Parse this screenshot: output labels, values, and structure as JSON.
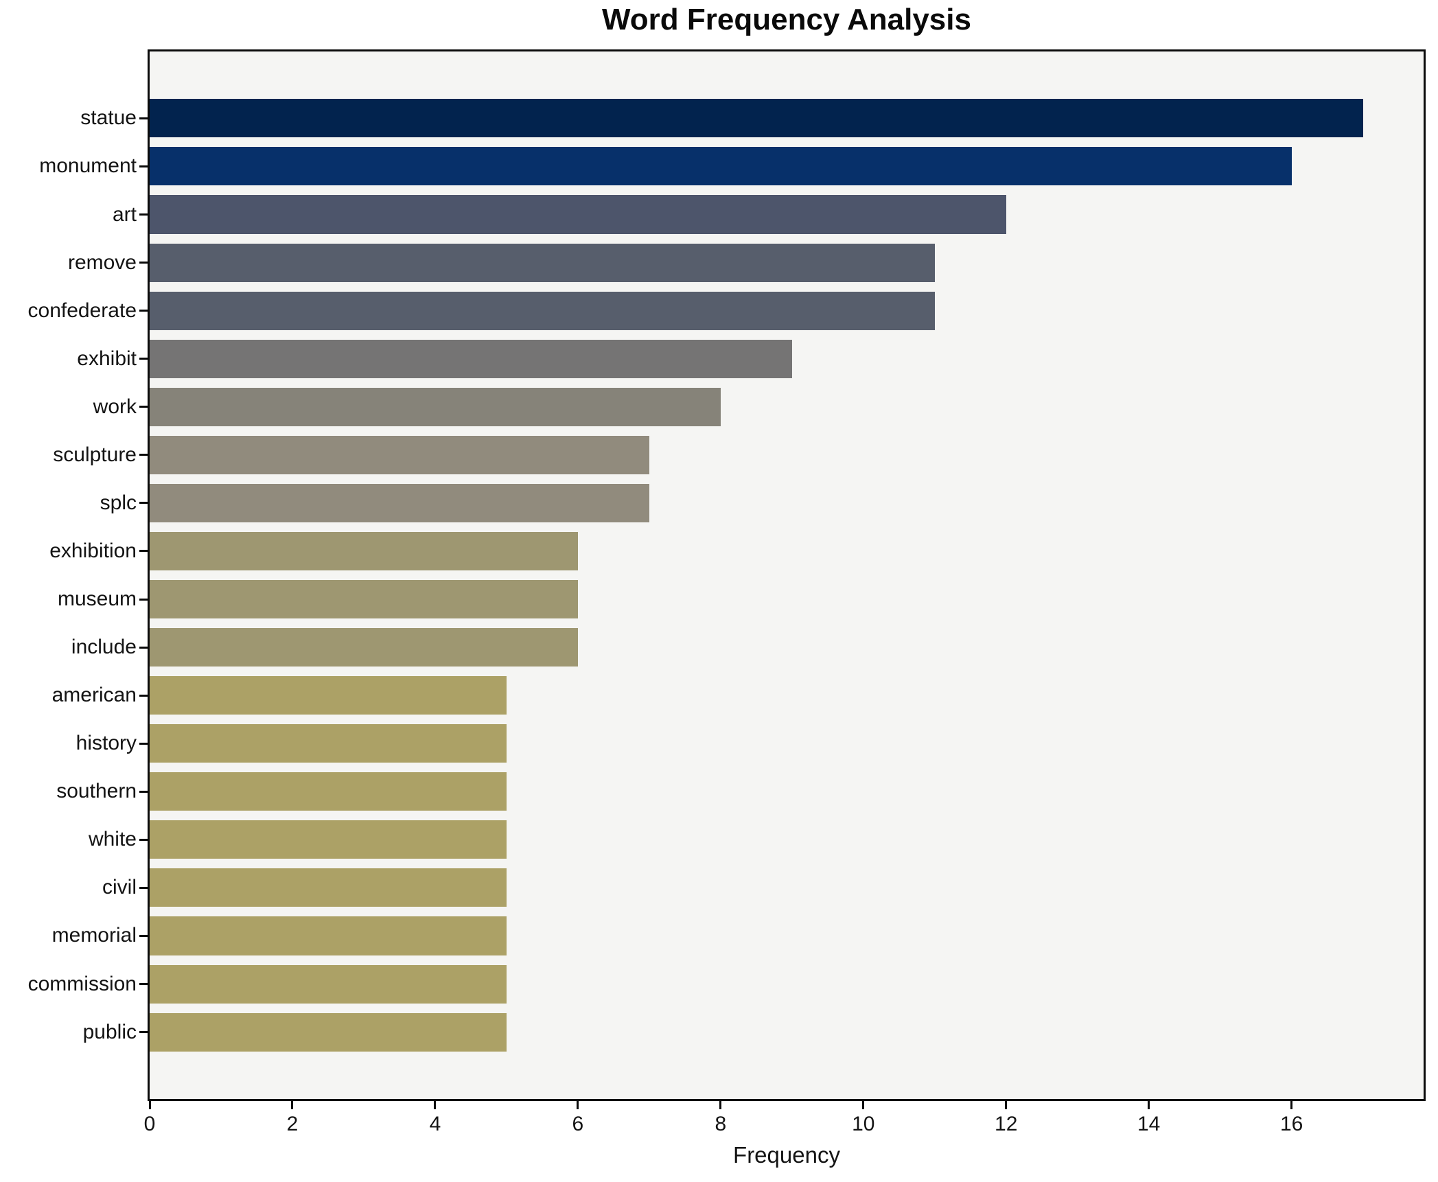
{
  "chart_data": {
    "type": "bar",
    "orientation": "horizontal",
    "title": "Word Frequency Analysis",
    "xlabel": "Frequency",
    "ylabel": "",
    "categories": [
      "statue",
      "monument",
      "art",
      "remove",
      "confederate",
      "exhibit",
      "work",
      "sculpture",
      "splc",
      "exhibition",
      "museum",
      "include",
      "american",
      "history",
      "southern",
      "white",
      "civil",
      "memorial",
      "commission",
      "public"
    ],
    "values": [
      17,
      16,
      12,
      11,
      11,
      9,
      8,
      7,
      7,
      6,
      6,
      6,
      5,
      5,
      5,
      5,
      5,
      5,
      5,
      5
    ],
    "bar_colors": [
      "#02234e",
      "#07306a",
      "#4d556b",
      "#575e6c",
      "#575e6c",
      "#757474",
      "#868379",
      "#918b7d",
      "#918b7d",
      "#9e9771",
      "#9e9771",
      "#9e9771",
      "#aca166",
      "#aca166",
      "#aca166",
      "#aca166",
      "#aca166",
      "#aca166",
      "#aca166",
      "#aca166"
    ],
    "xlim": [
      0,
      17.85
    ],
    "xticks": [
      0,
      2,
      4,
      6,
      8,
      10,
      12,
      14,
      16
    ],
    "grid": false,
    "legend": "none",
    "bar_height_fraction": 0.8,
    "plot_background": "#f5f5f3",
    "figure_background": "#ffffff",
    "spine_color": "#0b0b0b",
    "text_color": "#141414"
  }
}
